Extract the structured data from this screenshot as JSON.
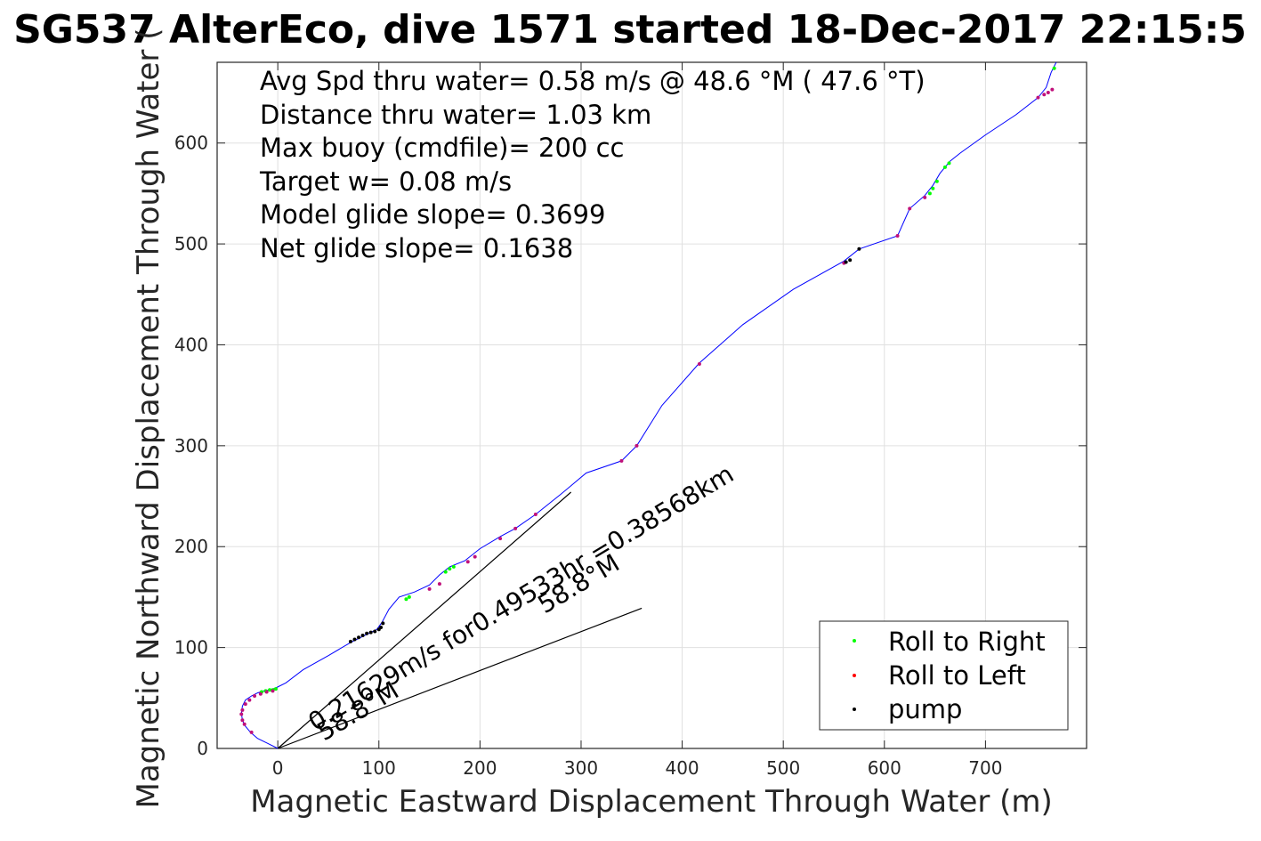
{
  "chart_data": {
    "type": "line",
    "title": "SG537 AlterEco, dive 1571 started 18-Dec-2017 22:15:5",
    "xlabel": "Magnetic Eastward Displacement Through Water (m)",
    "ylabel": "Magnetic Northward Displacement Through Water (",
    "xlim": [
      -60,
      800
    ],
    "ylim": [
      0,
      680
    ],
    "xticks": [
      0,
      100,
      200,
      300,
      400,
      500,
      600,
      700
    ],
    "yticks": [
      0,
      100,
      200,
      300,
      400,
      500,
      600
    ],
    "grid": true,
    "legend_position": "bottom-right",
    "annotations": [
      "Avg Spd thru water=  0.58 m/s @  48.6 °M ( 47.6 °T)",
      "Distance thru water=  1.03 km",
      "Max buoy (cmdfile)= 200 cc",
      "Target w= 0.08 m/s",
      "Model glide slope= 0.3699",
      "Net glide slope= 0.1638"
    ],
    "current_label": "0.21629m/s for0.49533hr =0.38568km",
    "heading_label_upper": "58.8°M",
    "heading_label_lower": "58.8°M",
    "colors": {
      "track": "#0000ff",
      "roll_right": "#00ff00",
      "roll_left": "#ff0000",
      "pump": "#000000",
      "magenta": "#c0107a",
      "reference_lines": "#000000",
      "grid": "#e0e0e0"
    },
    "series": [
      {
        "name": "track",
        "x": [
          0,
          -10,
          -20,
          -27,
          -32,
          -35,
          -36,
          -35,
          -32,
          -26,
          -20,
          -14,
          -8,
          -2,
          8,
          25,
          50,
          72,
          88,
          98,
          103,
          110,
          120,
          135,
          150,
          160,
          170,
          185,
          200,
          220,
          235,
          255,
          280,
          305,
          340,
          355,
          380,
          417,
          460,
          510,
          560,
          575,
          613,
          625,
          640,
          648,
          655,
          665,
          675,
          700,
          730,
          752,
          756,
          760,
          765,
          770
        ],
        "y": [
          0,
          5,
          10,
          16,
          22,
          28,
          35,
          42,
          48,
          52,
          55,
          57,
          58,
          60,
          65,
          78,
          92,
          105,
          113,
          118,
          125,
          138,
          150,
          155,
          162,
          172,
          180,
          186,
          198,
          210,
          218,
          232,
          252,
          273,
          285,
          300,
          340,
          382,
          420,
          455,
          483,
          495,
          508,
          535,
          548,
          558,
          570,
          582,
          590,
          608,
          628,
          645,
          650,
          655,
          670,
          680
        ]
      },
      {
        "name": "Roll to Right",
        "x": [
          -16,
          -12,
          -8,
          -5,
          -2,
          127,
          130,
          166,
          170,
          174,
          645,
          648,
          652,
          660,
          664,
          768
        ],
        "y": [
          56,
          57,
          58,
          58,
          59,
          148,
          150,
          175,
          178,
          180,
          550,
          555,
          562,
          576,
          580,
          674
        ]
      },
      {
        "name": "Roll to Left",
        "x": [
          -26,
          -33,
          -35,
          -36,
          -35,
          -32,
          -28,
          -23,
          -17,
          -11,
          -5,
          150,
          160,
          188,
          195,
          220,
          235,
          255,
          340,
          355,
          417,
          560,
          613,
          625,
          640,
          752,
          758,
          762,
          766
        ],
        "y": [
          16,
          24,
          28,
          34,
          38,
          44,
          48,
          52,
          54,
          56,
          57,
          158,
          163,
          185,
          190,
          208,
          218,
          232,
          285,
          300,
          381,
          481,
          508,
          535,
          546,
          645,
          648,
          650,
          653
        ]
      },
      {
        "name": "pump",
        "x": [
          72,
          76,
          80,
          84,
          88,
          92,
          96,
          100,
          102,
          104,
          562,
          566,
          575
        ],
        "y": [
          106,
          108,
          110,
          112,
          114,
          115,
          116,
          118,
          120,
          124,
          482,
          484,
          495
        ]
      }
    ],
    "reference_lines": [
      {
        "x": [
          0,
          290
        ],
        "y": [
          0,
          254
        ]
      },
      {
        "x": [
          0,
          360
        ],
        "y": [
          0,
          139
        ]
      }
    ],
    "legend": [
      "Roll to Right",
      "Roll to Left",
      "pump"
    ]
  }
}
